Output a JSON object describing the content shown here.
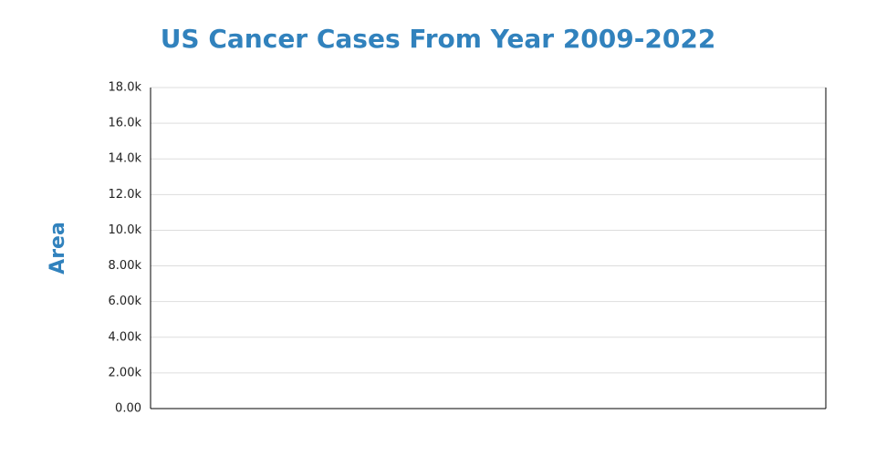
{
  "chart_data": {
    "type": "line",
    "title": "US Cancer Cases From Year 2009-2022",
    "y_label": "Area",
    "ylim": [
      0,
      18000
    ],
    "yticks": [
      {
        "value": 0,
        "label": "0.00"
      },
      {
        "value": 2000,
        "label": "2.00k"
      },
      {
        "value": 4000,
        "label": "4.00k"
      },
      {
        "value": 6000,
        "label": "6.00k"
      },
      {
        "value": 8000,
        "label": "8.00k"
      },
      {
        "value": 10000,
        "label": "10.0k"
      },
      {
        "value": 12000,
        "label": "12.0k"
      },
      {
        "value": 14000,
        "label": "14.0k"
      },
      {
        "value": 16000,
        "label": "16.0k"
      },
      {
        "value": 18000,
        "label": "18.0k"
      }
    ],
    "grid": true,
    "title_color": "#3182bd"
  }
}
